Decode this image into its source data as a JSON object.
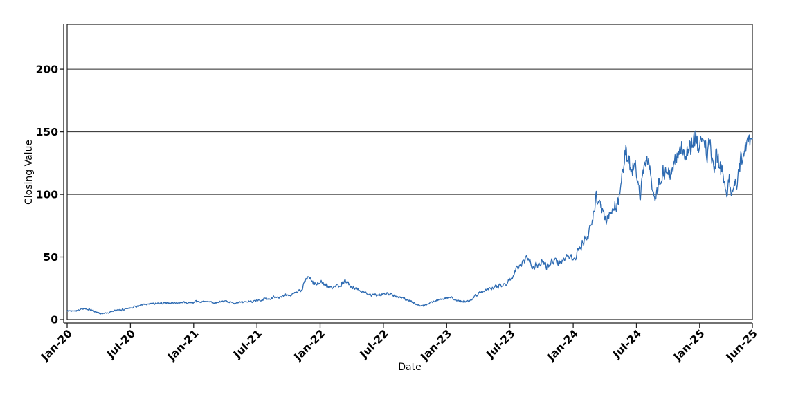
{
  "figure": {
    "background": "#ffffff",
    "title": ""
  },
  "colors": {
    "line": "#2e6bb2",
    "axis": "#1f1f1f",
    "frame": "#1f1f1f",
    "grid": "#262626",
    "text": "#000000",
    "background": "#ffffff"
  },
  "chart_data": {
    "type": "line",
    "title": "",
    "xlabel": "Date",
    "ylabel": "Closing Value",
    "legend": "none",
    "grid": "horizontal-solid",
    "x_tick_labels": [
      "Jan-20",
      "Jul-20",
      "Jan-21",
      "Jul-21",
      "Jan-22",
      "Jul-22",
      "Jan-23",
      "Jul-23",
      "Jan-24",
      "Jul-24",
      "Jan-25",
      "Jun-25"
    ],
    "x_tick_months": [
      0,
      6,
      12,
      18,
      24,
      30,
      36,
      42,
      48,
      54,
      60,
      65
    ],
    "y_ticks": [
      0,
      50,
      100,
      150,
      200
    ],
    "x_range_months": [
      0,
      65
    ],
    "ylim": [
      0,
      236
    ],
    "series": [
      {
        "name": "Closing Value",
        "color": "#2e6bb2",
        "waypoints_month_value": [
          [
            0,
            6.8
          ],
          [
            0.7,
            7.3
          ],
          [
            1.6,
            8.6
          ],
          [
            2.2,
            7.8
          ],
          [
            3.1,
            5.0
          ],
          [
            3.7,
            5.3
          ],
          [
            4.4,
            6.6
          ],
          [
            5,
            7.5
          ],
          [
            6,
            9.7
          ],
          [
            7,
            11.3
          ],
          [
            8,
            12.8
          ],
          [
            9,
            13.3
          ],
          [
            10,
            13.1
          ],
          [
            11,
            13.6
          ],
          [
            12,
            13.8
          ],
          [
            13,
            14.2
          ],
          [
            14,
            13.5
          ],
          [
            15,
            14.2
          ],
          [
            16,
            13.4
          ],
          [
            17,
            14.0
          ],
          [
            18,
            15.6
          ],
          [
            19,
            16.6
          ],
          [
            20,
            18.0
          ],
          [
            21,
            19.6
          ],
          [
            21.6,
            21.0
          ],
          [
            22.2,
            23.5
          ],
          [
            22.6,
            31.0
          ],
          [
            22.9,
            33.0
          ],
          [
            23.3,
            29.8
          ],
          [
            23.7,
            28.3
          ],
          [
            24.1,
            30.3
          ],
          [
            24.5,
            27.5
          ],
          [
            25.1,
            24.8
          ],
          [
            25.6,
            26.3
          ],
          [
            26.4,
            30.5
          ],
          [
            27,
            26.5
          ],
          [
            27.6,
            24.0
          ],
          [
            28.2,
            22.0
          ],
          [
            28.8,
            20.0
          ],
          [
            29.4,
            19.2
          ],
          [
            30,
            20.0
          ],
          [
            30.6,
            21.6
          ],
          [
            31.3,
            18.4
          ],
          [
            32,
            16.4
          ],
          [
            32.7,
            14.0
          ],
          [
            33.3,
            11.6
          ],
          [
            33.8,
            10.8
          ],
          [
            34.3,
            13.0
          ],
          [
            35.2,
            16.0
          ],
          [
            36,
            17.0
          ],
          [
            36.5,
            17.7
          ],
          [
            37.3,
            14.6
          ],
          [
            38.1,
            14.2
          ],
          [
            38.7,
            19.3
          ],
          [
            39.4,
            22.0
          ],
          [
            40,
            24.3
          ],
          [
            40.7,
            26.0
          ],
          [
            41.4,
            27.6
          ],
          [
            42.1,
            32.6
          ],
          [
            42.5,
            40.0
          ],
          [
            42.9,
            44.5
          ],
          [
            43.3,
            46.0
          ],
          [
            43.7,
            49.5
          ],
          [
            44.1,
            42.5
          ],
          [
            44.5,
            44.0
          ],
          [
            45,
            46.0
          ],
          [
            45.5,
            43.0
          ],
          [
            46.2,
            48.0
          ],
          [
            46.8,
            44.0
          ],
          [
            47.5,
            49.8
          ],
          [
            48,
            49.0
          ],
          [
            48.4,
            55.0
          ],
          [
            49,
            63.0
          ],
          [
            49.5,
            70.0
          ],
          [
            49.9,
            80.0
          ],
          [
            50.2,
            95.0
          ],
          [
            50.5,
            90.0
          ],
          [
            50.8,
            88.0
          ],
          [
            51.2,
            77.5
          ],
          [
            51.5,
            85.0
          ],
          [
            51.8,
            89.0
          ],
          [
            52.1,
            94.0
          ],
          [
            52.4,
            100.0
          ],
          [
            52.7,
            112.0
          ],
          [
            53,
            133.0
          ],
          [
            53.3,
            125.0
          ],
          [
            53.6,
            122.0
          ],
          [
            53.9,
            129.0
          ],
          [
            54.35,
            100.5
          ],
          [
            54.6,
            115.0
          ],
          [
            54.9,
            127.0
          ],
          [
            55.2,
            122.0
          ],
          [
            55.5,
            109.0
          ],
          [
            55.8,
            100.0
          ],
          [
            56.1,
            108.0
          ],
          [
            56.5,
            116.0
          ],
          [
            56.9,
            121.0
          ],
          [
            57.2,
            113.0
          ],
          [
            57.6,
            124.0
          ],
          [
            58,
            131.0
          ],
          [
            58.3,
            138.0
          ],
          [
            58.6,
            128.0
          ],
          [
            58.9,
            135.0
          ],
          [
            59.2,
            140.0
          ],
          [
            59.5,
            148.5
          ],
          [
            59.9,
            136.5
          ],
          [
            60.3,
            147.5
          ],
          [
            60.6,
            132.0
          ],
          [
            60.9,
            140.0
          ],
          [
            61.3,
            128.0
          ],
          [
            61.6,
            134.0
          ],
          [
            61.9,
            117.0
          ],
          [
            62.2,
            124.0
          ],
          [
            62.55,
            94.5
          ],
          [
            62.8,
            110.0
          ],
          [
            63.05,
            95.0
          ],
          [
            63.3,
            113.0
          ],
          [
            63.5,
            103.0
          ],
          [
            63.7,
            117.0
          ],
          [
            63.9,
            135.0
          ],
          [
            64.1,
            129.0
          ],
          [
            64.4,
            138.0
          ],
          [
            64.7,
            142.0
          ],
          [
            65,
            144.5
          ]
        ]
      }
    ],
    "noise": {
      "seed": 42,
      "points_per_month": 21,
      "smooth": 0.55,
      "amp_frac": 0.1,
      "amp_min": 1.2,
      "spike_frac": 0.25
    }
  }
}
